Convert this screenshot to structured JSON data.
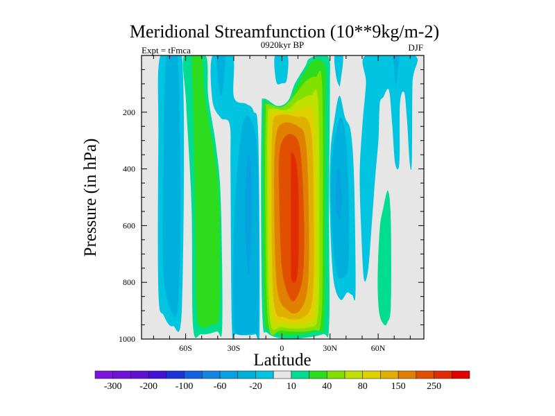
{
  "chart_data": {
    "type": "contour",
    "title": "Meridional Streamfunction (10**9kg/m-2)",
    "subtitle_left": "Expt = tFmca",
    "subtitle_center": "0920kyr BP",
    "subtitle_right": "DJF",
    "xlabel": "Latitude",
    "ylabel": "Pressure (in hPa)",
    "xlim": [
      -87.5,
      88.5
    ],
    "ylim": [
      0,
      1000
    ],
    "y_inverted": true,
    "xticks": [
      {
        "value": -60,
        "label": "60S"
      },
      {
        "value": -30,
        "label": "30S"
      },
      {
        "value": 0,
        "label": "0"
      },
      {
        "value": 30,
        "label": "30N"
      },
      {
        "value": 60,
        "label": "60N"
      }
    ],
    "xminor_step": 10,
    "yticks": [
      {
        "value": 200,
        "label": "200"
      },
      {
        "value": 400,
        "label": "400"
      },
      {
        "value": 600,
        "label": "600"
      },
      {
        "value": 800,
        "label": "800"
      },
      {
        "value": 1000,
        "label": "1000"
      }
    ],
    "yminor_step": 50,
    "background_color": "#e6e6e6",
    "levels": [
      -300,
      -250,
      -200,
      -150,
      -100,
      -80,
      -60,
      -40,
      -20,
      -10,
      10,
      20,
      40,
      60,
      80,
      100,
      150,
      200,
      250,
      300
    ],
    "colorbar_labels": [
      "-300",
      "-200",
      "-100",
      "-60",
      "-20",
      "10",
      "40",
      "80",
      "150",
      "250"
    ],
    "colors": [
      "#7a14dc",
      "#6e12d6",
      "#6010d0",
      "#4212d8",
      "#1a34d8",
      "#1262e0",
      "#1484e0",
      "#08a0e0",
      "#00b0dc",
      "#00c4e0",
      "#e6e6e6",
      "#00dc90",
      "#2edc1e",
      "#80e000",
      "#c0e000",
      "#e0d000",
      "#e0b000",
      "#e08000",
      "#e05000",
      "#e02c00",
      "#e00000"
    ],
    "contours": [
      {
        "band": 9,
        "points": [
          [
            -75.8,
            0
          ],
          [
            -62.3,
            0
          ],
          [
            -62.3,
            880
          ],
          [
            -68,
            954
          ],
          [
            -73.6,
            917
          ],
          [
            -77,
            831
          ],
          [
            -77,
            293
          ]
        ]
      },
      {
        "band": 8,
        "points": [
          [
            -71.9,
            0
          ],
          [
            -65,
            0
          ],
          [
            -63.2,
            538
          ],
          [
            -64.5,
            856
          ],
          [
            -67.5,
            917
          ],
          [
            -73.6,
            782
          ],
          [
            -74,
            416
          ]
        ]
      },
      {
        "band": 11,
        "points": [
          [
            -61,
            0
          ],
          [
            -47.6,
            0
          ],
          [
            -45.9,
            147
          ],
          [
            -41.1,
            318
          ],
          [
            -38.1,
            513
          ],
          [
            -37.2,
            954
          ],
          [
            -40.7,
            973
          ],
          [
            -50.2,
            983
          ],
          [
            -55.4,
            954
          ],
          [
            -56.3,
            538
          ],
          [
            -59.7,
            171
          ]
        ]
      },
      {
        "band": 12,
        "points": [
          [
            -55.8,
            0
          ],
          [
            -50.2,
            0
          ],
          [
            -48,
            147
          ],
          [
            -41.6,
            367
          ],
          [
            -39,
            538
          ],
          [
            -39,
            905
          ],
          [
            -43.7,
            949
          ],
          [
            -51.1,
            954
          ],
          [
            -53.2,
            880
          ],
          [
            -54.1,
            538
          ],
          [
            -55.4,
            171
          ]
        ]
      },
      {
        "band": 9,
        "points": [
          [
            -43.3,
            0
          ],
          [
            -30.7,
            0
          ],
          [
            -29.9,
            147
          ],
          [
            -22.1,
            171
          ],
          [
            -17.7,
            196
          ],
          [
            -14.7,
            293
          ],
          [
            -13.9,
            954
          ],
          [
            -16.5,
            983
          ],
          [
            -28.6,
            983
          ],
          [
            -31.2,
            954
          ],
          [
            -32,
            416
          ],
          [
            -32.5,
            245
          ],
          [
            -38.1,
            220
          ],
          [
            -43.3,
            159
          ]
        ]
      },
      {
        "band": 8,
        "points": [
          [
            -40.3,
            0
          ],
          [
            -35.5,
            0
          ],
          [
            -36.4,
            98
          ],
          [
            -38.1,
            142
          ],
          [
            -39.8,
            86
          ]
        ]
      },
      {
        "band": 8,
        "points": [
          [
            -24.2,
            235
          ],
          [
            -17.3,
            257
          ],
          [
            -14.7,
            440
          ],
          [
            -14.7,
            954
          ],
          [
            -17.3,
            978
          ],
          [
            -28.6,
            978
          ],
          [
            -30.3,
            880
          ],
          [
            -29.4,
            538
          ]
        ]
      },
      {
        "band": 7,
        "points": [
          [
            -20.8,
            342
          ],
          [
            -19,
            440
          ],
          [
            -19.5,
            660
          ],
          [
            -20.8,
            782
          ],
          [
            -22.5,
            636
          ],
          [
            -22.5,
            464
          ]
        ]
      },
      {
        "band": 9,
        "points": [
          [
            -4.3,
            0
          ],
          [
            3.5,
            0
          ],
          [
            3,
            86
          ],
          [
            0,
            98
          ],
          [
            -3.5,
            93
          ]
        ]
      },
      {
        "band": 11,
        "points": [
          [
            -11.3,
            152
          ],
          [
            -2.6,
            178
          ],
          [
            3.9,
            159
          ],
          [
            8.2,
            98
          ],
          [
            14.7,
            37
          ],
          [
            16.9,
            12
          ],
          [
            23.4,
            0
          ],
          [
            29.4,
            10
          ],
          [
            29.9,
            122
          ],
          [
            29.4,
            538
          ],
          [
            29.4,
            954
          ],
          [
            25.5,
            983
          ],
          [
            10.4,
            998
          ],
          [
            -0.4,
            998
          ],
          [
            -9.1,
            978
          ],
          [
            -12.1,
            929
          ],
          [
            -13,
            538
          ],
          [
            -12.6,
            200
          ]
        ]
      },
      {
        "band": 12,
        "points": [
          [
            -10.5,
            165
          ],
          [
            -2.5,
            186
          ],
          [
            4,
            170
          ],
          [
            9,
            110
          ],
          [
            15,
            50
          ],
          [
            18,
            25
          ],
          [
            23,
            14
          ],
          [
            27,
            40
          ],
          [
            27.5,
            130
          ],
          [
            27,
            538
          ],
          [
            26.5,
            940
          ],
          [
            22,
            970
          ],
          [
            10,
            985
          ],
          [
            0,
            985
          ],
          [
            -8,
            965
          ],
          [
            -11,
            920
          ],
          [
            -11.8,
            538
          ],
          [
            -11.5,
            210
          ]
        ]
      },
      {
        "band": 13,
        "points": [
          [
            -9,
            172
          ],
          [
            0,
            182
          ],
          [
            8,
            140
          ],
          [
            15,
            90
          ],
          [
            21,
            75
          ],
          [
            25,
            100
          ],
          [
            25.5,
            600
          ],
          [
            24.5,
            930
          ],
          [
            19,
            970
          ],
          [
            0,
            970
          ],
          [
            -8.5,
            945
          ],
          [
            -10.4,
            500
          ],
          [
            -10,
            200
          ]
        ]
      },
      {
        "band": 14,
        "points": [
          [
            -7,
            188
          ],
          [
            3,
            192
          ],
          [
            10,
            160
          ],
          [
            18,
            140
          ],
          [
            22.5,
            160
          ],
          [
            23.4,
            600
          ],
          [
            22.5,
            910
          ],
          [
            17,
            958
          ],
          [
            0,
            958
          ],
          [
            -7.5,
            925
          ],
          [
            -9.1,
            500
          ],
          [
            -8.8,
            220
          ]
        ]
      },
      {
        "band": 15,
        "points": [
          [
            -5,
            200
          ],
          [
            5,
            202
          ],
          [
            12,
            190
          ],
          [
            20,
            220
          ],
          [
            21.2,
            600
          ],
          [
            20.5,
            890
          ],
          [
            15,
            941
          ],
          [
            1,
            941
          ],
          [
            -6,
            900
          ],
          [
            -7.8,
            500
          ],
          [
            -7.5,
            240
          ]
        ]
      },
      {
        "band": 16,
        "points": [
          [
            -3,
            213
          ],
          [
            8,
            215
          ],
          [
            18,
            260
          ],
          [
            19.9,
            600
          ],
          [
            19,
            860
          ],
          [
            13,
            924
          ],
          [
            2,
            924
          ],
          [
            -5,
            870
          ],
          [
            -6.5,
            500
          ],
          [
            -6,
            260
          ]
        ]
      },
      {
        "band": 17,
        "points": [
          [
            0,
            240
          ],
          [
            10,
            250
          ],
          [
            15,
            310
          ],
          [
            16.9,
            600
          ],
          [
            16,
            820
          ],
          [
            11,
            900
          ],
          [
            4,
            900
          ],
          [
            -3,
            820
          ],
          [
            -4.8,
            500
          ],
          [
            -4,
            300
          ]
        ]
      },
      {
        "band": 18,
        "points": [
          [
            3,
            281
          ],
          [
            9,
            290
          ],
          [
            12,
            360
          ],
          [
            13.9,
            600
          ],
          [
            13,
            780
          ],
          [
            9,
            856
          ],
          [
            5,
            856
          ],
          [
            0,
            750
          ],
          [
            -1.7,
            500
          ],
          [
            -1.5,
            340
          ]
        ]
      },
      {
        "band": 19,
        "points": [
          [
            6,
            342
          ],
          [
            9,
            380
          ],
          [
            10.4,
            500
          ],
          [
            10.4,
            700
          ],
          [
            9,
            790
          ],
          [
            6,
            790
          ],
          [
            5.6,
            700
          ],
          [
            5.6,
            420
          ]
        ]
      },
      {
        "band": 9,
        "points": [
          [
            32.9,
            0
          ],
          [
            38.1,
            0
          ],
          [
            36.4,
            98
          ],
          [
            35.5,
            105
          ],
          [
            33.8,
            73
          ]
        ]
      },
      {
        "band": 9,
        "points": [
          [
            35.9,
            142
          ],
          [
            39.4,
            220
          ],
          [
            42.9,
            269
          ],
          [
            45,
            440
          ],
          [
            45.9,
            831
          ],
          [
            43.7,
            844
          ],
          [
            40.7,
            836
          ],
          [
            36.4,
            861
          ],
          [
            32,
            782
          ],
          [
            29.9,
            538
          ],
          [
            30.3,
            342
          ],
          [
            32.9,
            220
          ]
        ]
      },
      {
        "band": 8,
        "points": [
          [
            36.4,
            220
          ],
          [
            39.8,
            293
          ],
          [
            41.6,
            489
          ],
          [
            41.6,
            733
          ],
          [
            38.5,
            782
          ],
          [
            33.8,
            758
          ],
          [
            30.7,
            538
          ],
          [
            31.6,
            342
          ]
        ]
      },
      {
        "band": 7,
        "points": [
          [
            35.5,
            403
          ],
          [
            37.2,
            489
          ],
          [
            36.4,
            575
          ],
          [
            33.8,
            538
          ],
          [
            33.8,
            440
          ]
        ]
      },
      {
        "band": 9,
        "points": [
          [
            52.4,
            0
          ],
          [
            82.7,
            0
          ],
          [
            81.4,
            98
          ],
          [
            81,
            374
          ],
          [
            79.7,
            379
          ],
          [
            77.9,
            220
          ],
          [
            76.2,
            130
          ],
          [
            73.6,
            171
          ],
          [
            73.2,
            379
          ],
          [
            70.6,
            381
          ],
          [
            68.8,
            245
          ],
          [
            66.7,
            122
          ],
          [
            63.2,
            147
          ],
          [
            61,
            171
          ],
          [
            60.2,
            293
          ],
          [
            58,
            440
          ],
          [
            55.8,
            611
          ],
          [
            53.7,
            758
          ],
          [
            51.1,
            787
          ],
          [
            49.4,
            611
          ],
          [
            48.5,
            416
          ],
          [
            50.2,
            245
          ],
          [
            52.4,
            98
          ]
        ]
      },
      {
        "band": 8,
        "points": [
          [
            69.7,
            0
          ],
          [
            73.2,
            0
          ],
          [
            71.9,
            73
          ],
          [
            71,
            110
          ],
          [
            70.1,
            49
          ]
        ]
      },
      {
        "band": 11,
        "points": [
          [
            66.2,
            477
          ],
          [
            67.9,
            587
          ],
          [
            67.9,
            880
          ],
          [
            65.8,
            941
          ],
          [
            63.6,
            949
          ],
          [
            60.6,
            905
          ],
          [
            59.7,
            782
          ],
          [
            61,
            611
          ],
          [
            63.2,
            538
          ]
        ]
      }
    ]
  }
}
